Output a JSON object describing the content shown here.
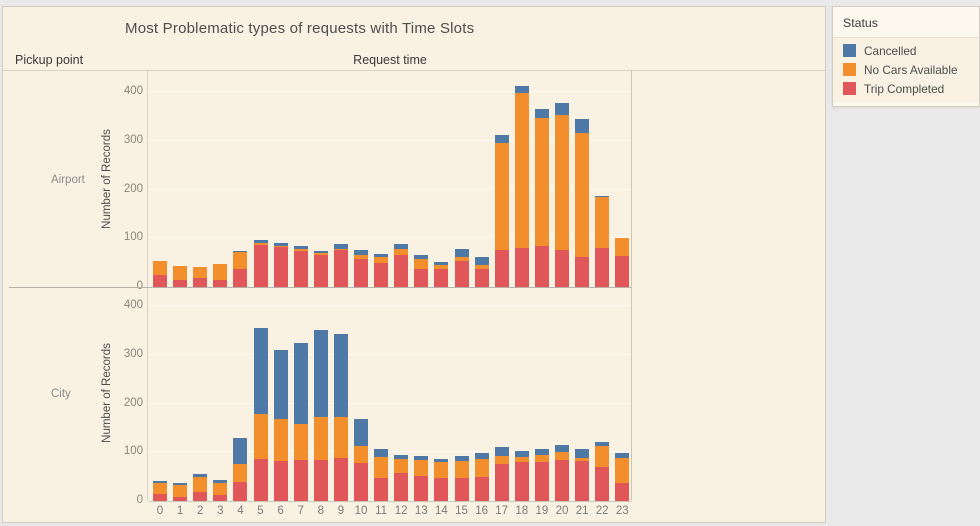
{
  "header": {
    "title": "Most Problematic types of requests with Time Slots",
    "col_left": "Pickup point",
    "col_right": "Request time"
  },
  "legend": {
    "title": "Status",
    "items": [
      {
        "label": "Cancelled",
        "color": "#4e79a7"
      },
      {
        "label": "No Cars Available",
        "color": "#f28e2b"
      },
      {
        "label": "Trip Completed",
        "color": "#e15759"
      }
    ]
  },
  "chart_data": {
    "type": "bar",
    "stacked": true,
    "title": "Most Problematic types of requests with Time Slots",
    "xlabel": "Request time",
    "ylabel": "Number of Records",
    "row_dimension": "Pickup point",
    "x": [
      "0",
      "1",
      "2",
      "3",
      "4",
      "5",
      "6",
      "7",
      "8",
      "9",
      "10",
      "11",
      "12",
      "13",
      "14",
      "15",
      "16",
      "17",
      "18",
      "19",
      "20",
      "21",
      "22",
      "23"
    ],
    "yticks": [
      0,
      100,
      200,
      300,
      400
    ],
    "ylim": [
      0,
      435
    ],
    "grid": true,
    "legend_position": "top-right",
    "stack_order_bottom_to_top": [
      "Trip Completed",
      "No Cars Available",
      "Cancelled"
    ],
    "panels": [
      {
        "label": "Airport",
        "series": [
          {
            "name": "Trip Completed",
            "color": "#e15759",
            "values": [
              25,
              14,
              18,
              14,
              38,
              86,
              82,
              74,
              66,
              75,
              57,
              49,
              66,
              38,
              37,
              53,
              38,
              76,
              81,
              84,
              76,
              62,
              81,
              64
            ]
          },
          {
            "name": "No Cars Available",
            "color": "#f28e2b",
            "values": [
              28,
              30,
              24,
              33,
              33,
              5,
              3,
              4,
              3,
              4,
              9,
              12,
              12,
              20,
              8,
              9,
              8,
              220,
              317,
              264,
              277,
              255,
              103,
              37
            ]
          },
          {
            "name": "Cancelled",
            "color": "#4e79a7",
            "values": [
              0,
              0,
              0,
              0,
              3,
              6,
              6,
              7,
              5,
              10,
              10,
              7,
              10,
              8,
              7,
              17,
              16,
              16,
              14,
              17,
              25,
              28,
              2,
              0
            ]
          }
        ]
      },
      {
        "label": "City",
        "series": [
          {
            "name": "Trip Completed",
            "color": "#e15759",
            "values": [
              14,
              9,
              19,
              12,
              39,
              87,
              82,
              85,
              85,
              88,
              78,
              47,
              57,
              52,
              47,
              48,
              50,
              76,
              81,
              80,
              84,
              82,
              69,
              38
            ]
          },
          {
            "name": "No Cars Available",
            "color": "#f28e2b",
            "values": [
              22,
              24,
              31,
              26,
              38,
              92,
              87,
              74,
              88,
              85,
              34,
              44,
              29,
              32,
              33,
              34,
              37,
              16,
              10,
              14,
              16,
              7,
              43,
              50
            ]
          },
          {
            "name": "Cancelled",
            "color": "#4e79a7",
            "values": [
              5,
              5,
              6,
              5,
              52,
              177,
              141,
              165,
              179,
              171,
              57,
              16,
              8,
              9,
              7,
              11,
              12,
              19,
              12,
              13,
              16,
              17,
              10,
              10
            ]
          }
        ]
      }
    ]
  }
}
